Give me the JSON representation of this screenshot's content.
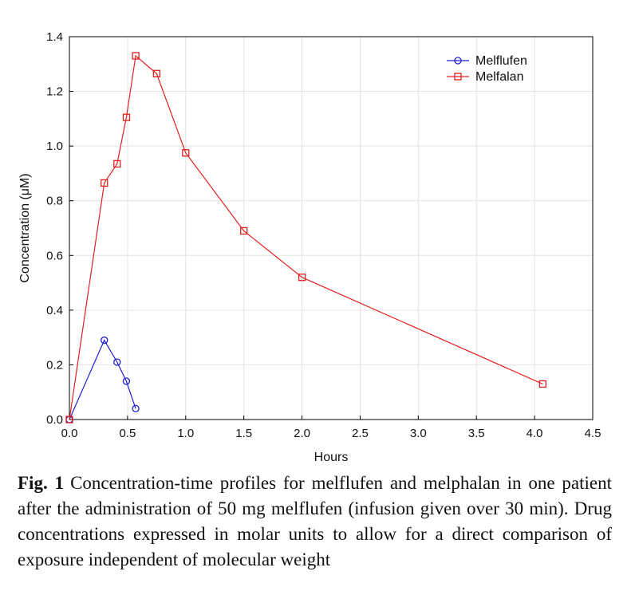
{
  "chart_data": {
    "type": "line",
    "xlabel": "Hours",
    "ylabel": "Concentration (μM)",
    "xlim": [
      0,
      4.5
    ],
    "ylim": [
      0,
      1.4
    ],
    "xticks": [
      "0.0",
      "0.5",
      "1.0",
      "1.5",
      "2.0",
      "2.5",
      "3.0",
      "3.5",
      "4.0",
      "4.5"
    ],
    "yticks": [
      "0.0",
      "0.2",
      "0.4",
      "0.6",
      "0.8",
      "1.0",
      "1.2",
      "1.4"
    ],
    "grid": true,
    "legend_position": "top-right",
    "series": [
      {
        "name": "Melflufen",
        "color": "#1f1fd0",
        "marker": "circle",
        "x": [
          0.0,
          0.3,
          0.41,
          0.49,
          0.57
        ],
        "y": [
          0.0,
          0.29,
          0.21,
          0.14,
          0.04
        ]
      },
      {
        "name": "Melfalan",
        "color": "#e02020",
        "marker": "square",
        "x": [
          0.0,
          0.3,
          0.41,
          0.49,
          0.57,
          0.75,
          1.0,
          1.5,
          2.0,
          4.07
        ],
        "y": [
          0.0,
          0.865,
          0.935,
          1.105,
          1.33,
          1.265,
          0.975,
          0.69,
          0.52,
          0.13
        ]
      }
    ]
  },
  "caption": {
    "label": "Fig. 1",
    "text": "Concentration-time profiles for melflufen and melphalan in one patient after the administration of 50 mg melflufen (infusion given over 30 min). Drug concentrations expressed in molar units to allow for a direct comparison of exposure independent of molecular weight"
  }
}
